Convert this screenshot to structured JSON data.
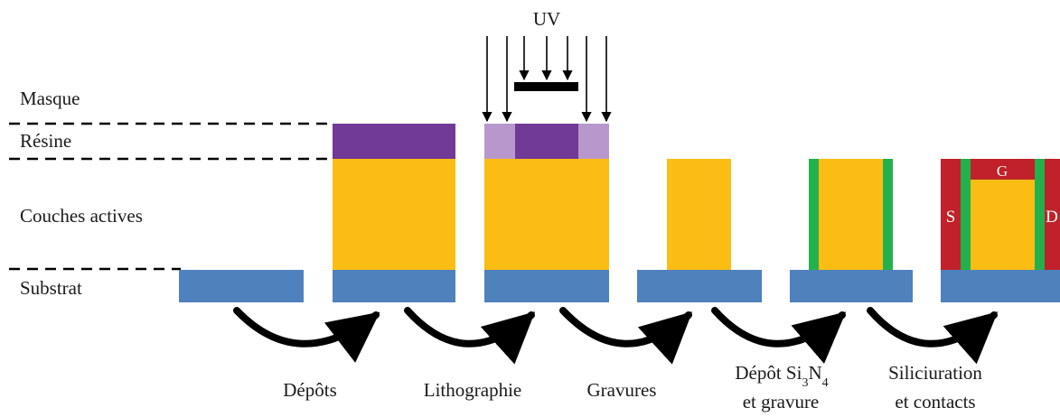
{
  "colors": {
    "substrate": "#4f81bd",
    "active": "#fbbd14",
    "resin": "#703a96",
    "resin_exposed": "#b898cc",
    "nitride": "#23b14d",
    "silicide": "#c0212a",
    "line": "#000000"
  },
  "labels": {
    "uv": "UV",
    "masque": "Masque",
    "resine": "Résine",
    "couches": "Couches actives",
    "substrat": "Substrat"
  },
  "device": {
    "gate": "G",
    "source": "S",
    "drain": "D"
  },
  "steps": [
    {
      "id": "depots",
      "lines": [
        "Dépôts"
      ]
    },
    {
      "id": "litho",
      "lines": [
        "Lithographie"
      ]
    },
    {
      "id": "gravures",
      "lines": [
        "Gravures"
      ]
    },
    {
      "id": "nitride",
      "line1_prefix": "Dépôt  Si",
      "sub1": "3",
      "mid": "N",
      "sub2": "4",
      "line2": "et gravure"
    },
    {
      "id": "silic",
      "lines": [
        "Siliciuration",
        "et contacts"
      ]
    }
  ]
}
